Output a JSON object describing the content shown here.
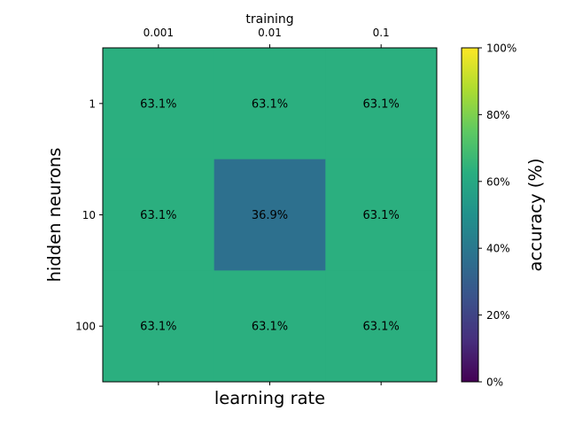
{
  "chart_data": {
    "type": "heatmap",
    "title": "training",
    "xlabel": "learning rate",
    "ylabel": "hidden neurons",
    "x_categories": [
      "0.001",
      "0.01",
      "0.1"
    ],
    "y_categories": [
      "1",
      "10",
      "100"
    ],
    "values": [
      [
        63.1,
        63.1,
        63.1
      ],
      [
        63.1,
        36.9,
        63.1
      ],
      [
        63.1,
        63.1,
        63.1
      ]
    ],
    "cell_labels": [
      [
        "63.1%",
        "63.1%",
        "63.1%"
      ],
      [
        "63.1%",
        "36.9%",
        "63.1%"
      ],
      [
        "63.1%",
        "63.1%",
        "63.1%"
      ]
    ],
    "colorbar": {
      "label": "accuracy (%)",
      "range": [
        0,
        100
      ],
      "ticks": [
        0,
        20,
        40,
        60,
        80,
        100
      ],
      "tick_labels": [
        "0%",
        "20%",
        "40%",
        "60%",
        "80%",
        "100%"
      ],
      "colormap": "viridis"
    }
  }
}
